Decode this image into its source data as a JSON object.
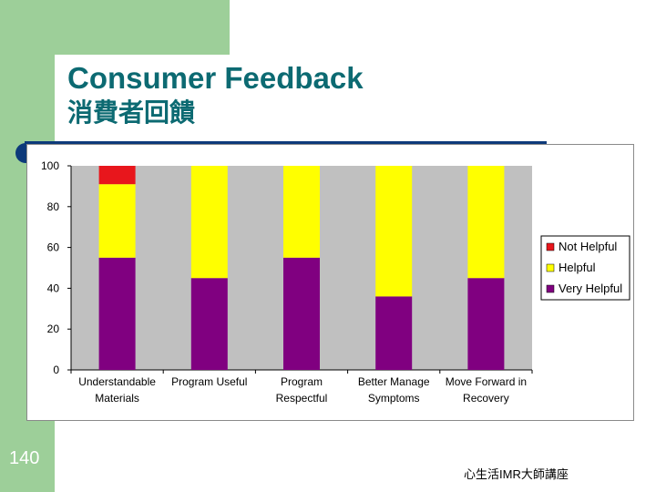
{
  "slide": {
    "title": "Consumer Feedback",
    "subtitle": "消費者回饋",
    "page_number": "140",
    "footer": "心生活IMR大師講座"
  },
  "colors": {
    "not_helpful": "#e8161c",
    "helpful": "#ffff00",
    "very_helpful": "#800080",
    "plot_bg": "#c0c0c0",
    "accent": "#0c6a72",
    "sidebar": "#9dcf99"
  },
  "chart_data": {
    "type": "bar",
    "stacked": true,
    "categories": [
      [
        "Understandable",
        "Materials"
      ],
      [
        "Program Useful"
      ],
      [
        "Program",
        "Respectful"
      ],
      [
        "Better Manage",
        "Symptoms"
      ],
      [
        "Move Forward in",
        "Recovery"
      ]
    ],
    "series": [
      {
        "name": "Very Helpful",
        "color": "#800080",
        "values": [
          55,
          45,
          55,
          36,
          45
        ]
      },
      {
        "name": "Helpful",
        "color": "#ffff00",
        "values": [
          36,
          55,
          45,
          64,
          55
        ]
      },
      {
        "name": "Not Helpful",
        "color": "#e8161c",
        "values": [
          9,
          0,
          0,
          0,
          0
        ]
      }
    ],
    "legend_order": [
      "Not Helpful",
      "Helpful",
      "Very Helpful"
    ],
    "legend_position": "right",
    "ylim": [
      0,
      100
    ],
    "yticks": [
      "0",
      "20",
      "40",
      "60",
      "80",
      "100"
    ],
    "grid": false,
    "title": "",
    "xlabel": "",
    "ylabel": ""
  }
}
